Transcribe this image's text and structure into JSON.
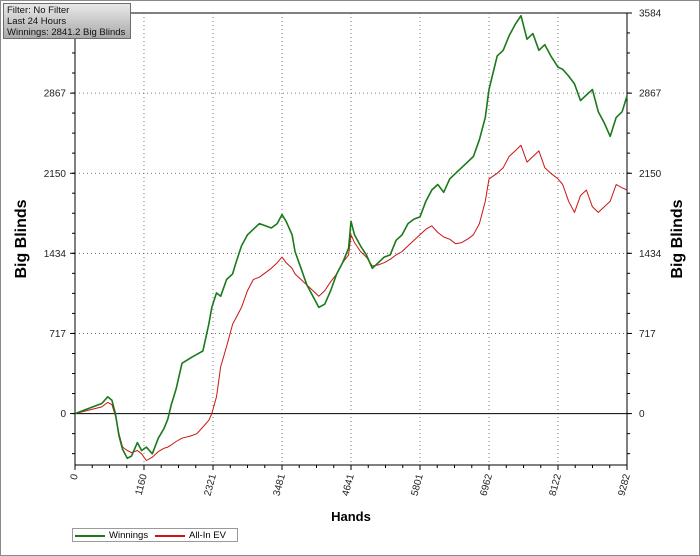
{
  "info_box": {
    "filter": "Filter: No Filter",
    "period": "Last  24 Hours",
    "winnings": "Winnings: 2841.2 Big Blinds"
  },
  "chart_data": {
    "type": "line",
    "xlabel": "Hands",
    "ylabel": "Big Blinds",
    "ylabel_right": "Big Blinds",
    "xlim": [
      0,
      9282
    ],
    "ylim": [
      -460,
      3584
    ],
    "x_ticks": [
      0,
      1160,
      2321,
      3481,
      4641,
      5801,
      6962,
      8122,
      9282
    ],
    "y_ticks": [
      0,
      717,
      1434,
      2150,
      2867,
      3584
    ],
    "grid": true,
    "legend_placement": "bottom-left",
    "series": [
      {
        "name": "Winnings",
        "color": "#1a7a1a",
        "points": [
          [
            0,
            0
          ],
          [
            150,
            30
          ],
          [
            300,
            60
          ],
          [
            450,
            90
          ],
          [
            550,
            150
          ],
          [
            620,
            120
          ],
          [
            680,
            0
          ],
          [
            740,
            -200
          ],
          [
            800,
            -320
          ],
          [
            880,
            -400
          ],
          [
            950,
            -380
          ],
          [
            1050,
            -260
          ],
          [
            1120,
            -330
          ],
          [
            1200,
            -300
          ],
          [
            1300,
            -360
          ],
          [
            1400,
            -220
          ],
          [
            1500,
            -130
          ],
          [
            1560,
            -50
          ],
          [
            1620,
            80
          ],
          [
            1700,
            220
          ],
          [
            1800,
            450
          ],
          [
            1950,
            500
          ],
          [
            2050,
            530
          ],
          [
            2150,
            560
          ],
          [
            2250,
            800
          ],
          [
            2300,
            950
          ],
          [
            2380,
            1080
          ],
          [
            2450,
            1050
          ],
          [
            2550,
            1200
          ],
          [
            2650,
            1250
          ],
          [
            2700,
            1340
          ],
          [
            2800,
            1500
          ],
          [
            2900,
            1600
          ],
          [
            3000,
            1650
          ],
          [
            3100,
            1700
          ],
          [
            3200,
            1680
          ],
          [
            3300,
            1660
          ],
          [
            3400,
            1700
          ],
          [
            3481,
            1780
          ],
          [
            3550,
            1720
          ],
          [
            3650,
            1600
          ],
          [
            3700,
            1450
          ],
          [
            3800,
            1300
          ],
          [
            3900,
            1150
          ],
          [
            4000,
            1050
          ],
          [
            4100,
            950
          ],
          [
            4200,
            980
          ],
          [
            4300,
            1100
          ],
          [
            4400,
            1250
          ],
          [
            4500,
            1350
          ],
          [
            4600,
            1480
          ],
          [
            4641,
            1720
          ],
          [
            4700,
            1600
          ],
          [
            4800,
            1500
          ],
          [
            4900,
            1420
          ],
          [
            5000,
            1300
          ],
          [
            5100,
            1350
          ],
          [
            5200,
            1400
          ],
          [
            5300,
            1420
          ],
          [
            5400,
            1550
          ],
          [
            5500,
            1600
          ],
          [
            5600,
            1700
          ],
          [
            5700,
            1740
          ],
          [
            5801,
            1760
          ],
          [
            5900,
            1900
          ],
          [
            6000,
            2000
          ],
          [
            6100,
            2050
          ],
          [
            6200,
            1980
          ],
          [
            6300,
            2100
          ],
          [
            6400,
            2150
          ],
          [
            6500,
            2200
          ],
          [
            6600,
            2250
          ],
          [
            6700,
            2300
          ],
          [
            6800,
            2450
          ],
          [
            6900,
            2650
          ],
          [
            6962,
            2900
          ],
          [
            7100,
            3200
          ],
          [
            7200,
            3250
          ],
          [
            7300,
            3380
          ],
          [
            7400,
            3480
          ],
          [
            7500,
            3560
          ],
          [
            7600,
            3350
          ],
          [
            7700,
            3400
          ],
          [
            7800,
            3250
          ],
          [
            7900,
            3300
          ],
          [
            8000,
            3200
          ],
          [
            8122,
            3100
          ],
          [
            8200,
            3080
          ],
          [
            8300,
            3020
          ],
          [
            8400,
            2950
          ],
          [
            8500,
            2800
          ],
          [
            8600,
            2850
          ],
          [
            8700,
            2900
          ],
          [
            8800,
            2700
          ],
          [
            8900,
            2600
          ],
          [
            9000,
            2480
          ],
          [
            9100,
            2650
          ],
          [
            9200,
            2700
          ],
          [
            9282,
            2841
          ]
        ]
      },
      {
        "name": "All-In EV",
        "color": "#cc1414",
        "points": [
          [
            0,
            0
          ],
          [
            150,
            20
          ],
          [
            300,
            40
          ],
          [
            450,
            60
          ],
          [
            550,
            100
          ],
          [
            620,
            80
          ],
          [
            680,
            -20
          ],
          [
            740,
            -180
          ],
          [
            800,
            -300
          ],
          [
            880,
            -330
          ],
          [
            950,
            -350
          ],
          [
            1050,
            -330
          ],
          [
            1120,
            -360
          ],
          [
            1200,
            -420
          ],
          [
            1300,
            -390
          ],
          [
            1400,
            -340
          ],
          [
            1500,
            -310
          ],
          [
            1560,
            -300
          ],
          [
            1620,
            -280
          ],
          [
            1700,
            -250
          ],
          [
            1800,
            -220
          ],
          [
            1950,
            -200
          ],
          [
            2050,
            -180
          ],
          [
            2150,
            -120
          ],
          [
            2250,
            -60
          ],
          [
            2300,
            0
          ],
          [
            2380,
            150
          ],
          [
            2450,
            420
          ],
          [
            2550,
            600
          ],
          [
            2650,
            800
          ],
          [
            2700,
            850
          ],
          [
            2800,
            950
          ],
          [
            2900,
            1100
          ],
          [
            3000,
            1200
          ],
          [
            3100,
            1220
          ],
          [
            3200,
            1260
          ],
          [
            3300,
            1300
          ],
          [
            3400,
            1350
          ],
          [
            3481,
            1400
          ],
          [
            3550,
            1350
          ],
          [
            3650,
            1300
          ],
          [
            3700,
            1250
          ],
          [
            3800,
            1200
          ],
          [
            3900,
            1150
          ],
          [
            4000,
            1100
          ],
          [
            4100,
            1050
          ],
          [
            4200,
            1100
          ],
          [
            4300,
            1180
          ],
          [
            4400,
            1250
          ],
          [
            4500,
            1350
          ],
          [
            4600,
            1420
          ],
          [
            4641,
            1600
          ],
          [
            4700,
            1530
          ],
          [
            4800,
            1450
          ],
          [
            4900,
            1400
          ],
          [
            5000,
            1320
          ],
          [
            5100,
            1330
          ],
          [
            5200,
            1350
          ],
          [
            5300,
            1380
          ],
          [
            5400,
            1420
          ],
          [
            5500,
            1450
          ],
          [
            5600,
            1500
          ],
          [
            5700,
            1550
          ],
          [
            5801,
            1600
          ],
          [
            5900,
            1650
          ],
          [
            6000,
            1680
          ],
          [
            6100,
            1620
          ],
          [
            6200,
            1580
          ],
          [
            6300,
            1560
          ],
          [
            6400,
            1520
          ],
          [
            6500,
            1530
          ],
          [
            6600,
            1560
          ],
          [
            6700,
            1600
          ],
          [
            6800,
            1700
          ],
          [
            6900,
            1900
          ],
          [
            6962,
            2100
          ],
          [
            7100,
            2150
          ],
          [
            7200,
            2200
          ],
          [
            7300,
            2300
          ],
          [
            7400,
            2350
          ],
          [
            7500,
            2400
          ],
          [
            7600,
            2250
          ],
          [
            7700,
            2300
          ],
          [
            7800,
            2350
          ],
          [
            7900,
            2200
          ],
          [
            8000,
            2150
          ],
          [
            8122,
            2100
          ],
          [
            8200,
            2050
          ],
          [
            8300,
            1900
          ],
          [
            8400,
            1800
          ],
          [
            8500,
            1950
          ],
          [
            8600,
            2000
          ],
          [
            8700,
            1850
          ],
          [
            8800,
            1800
          ],
          [
            8900,
            1850
          ],
          [
            9000,
            1900
          ],
          [
            9100,
            2050
          ],
          [
            9200,
            2020
          ],
          [
            9282,
            2000
          ]
        ]
      }
    ]
  }
}
